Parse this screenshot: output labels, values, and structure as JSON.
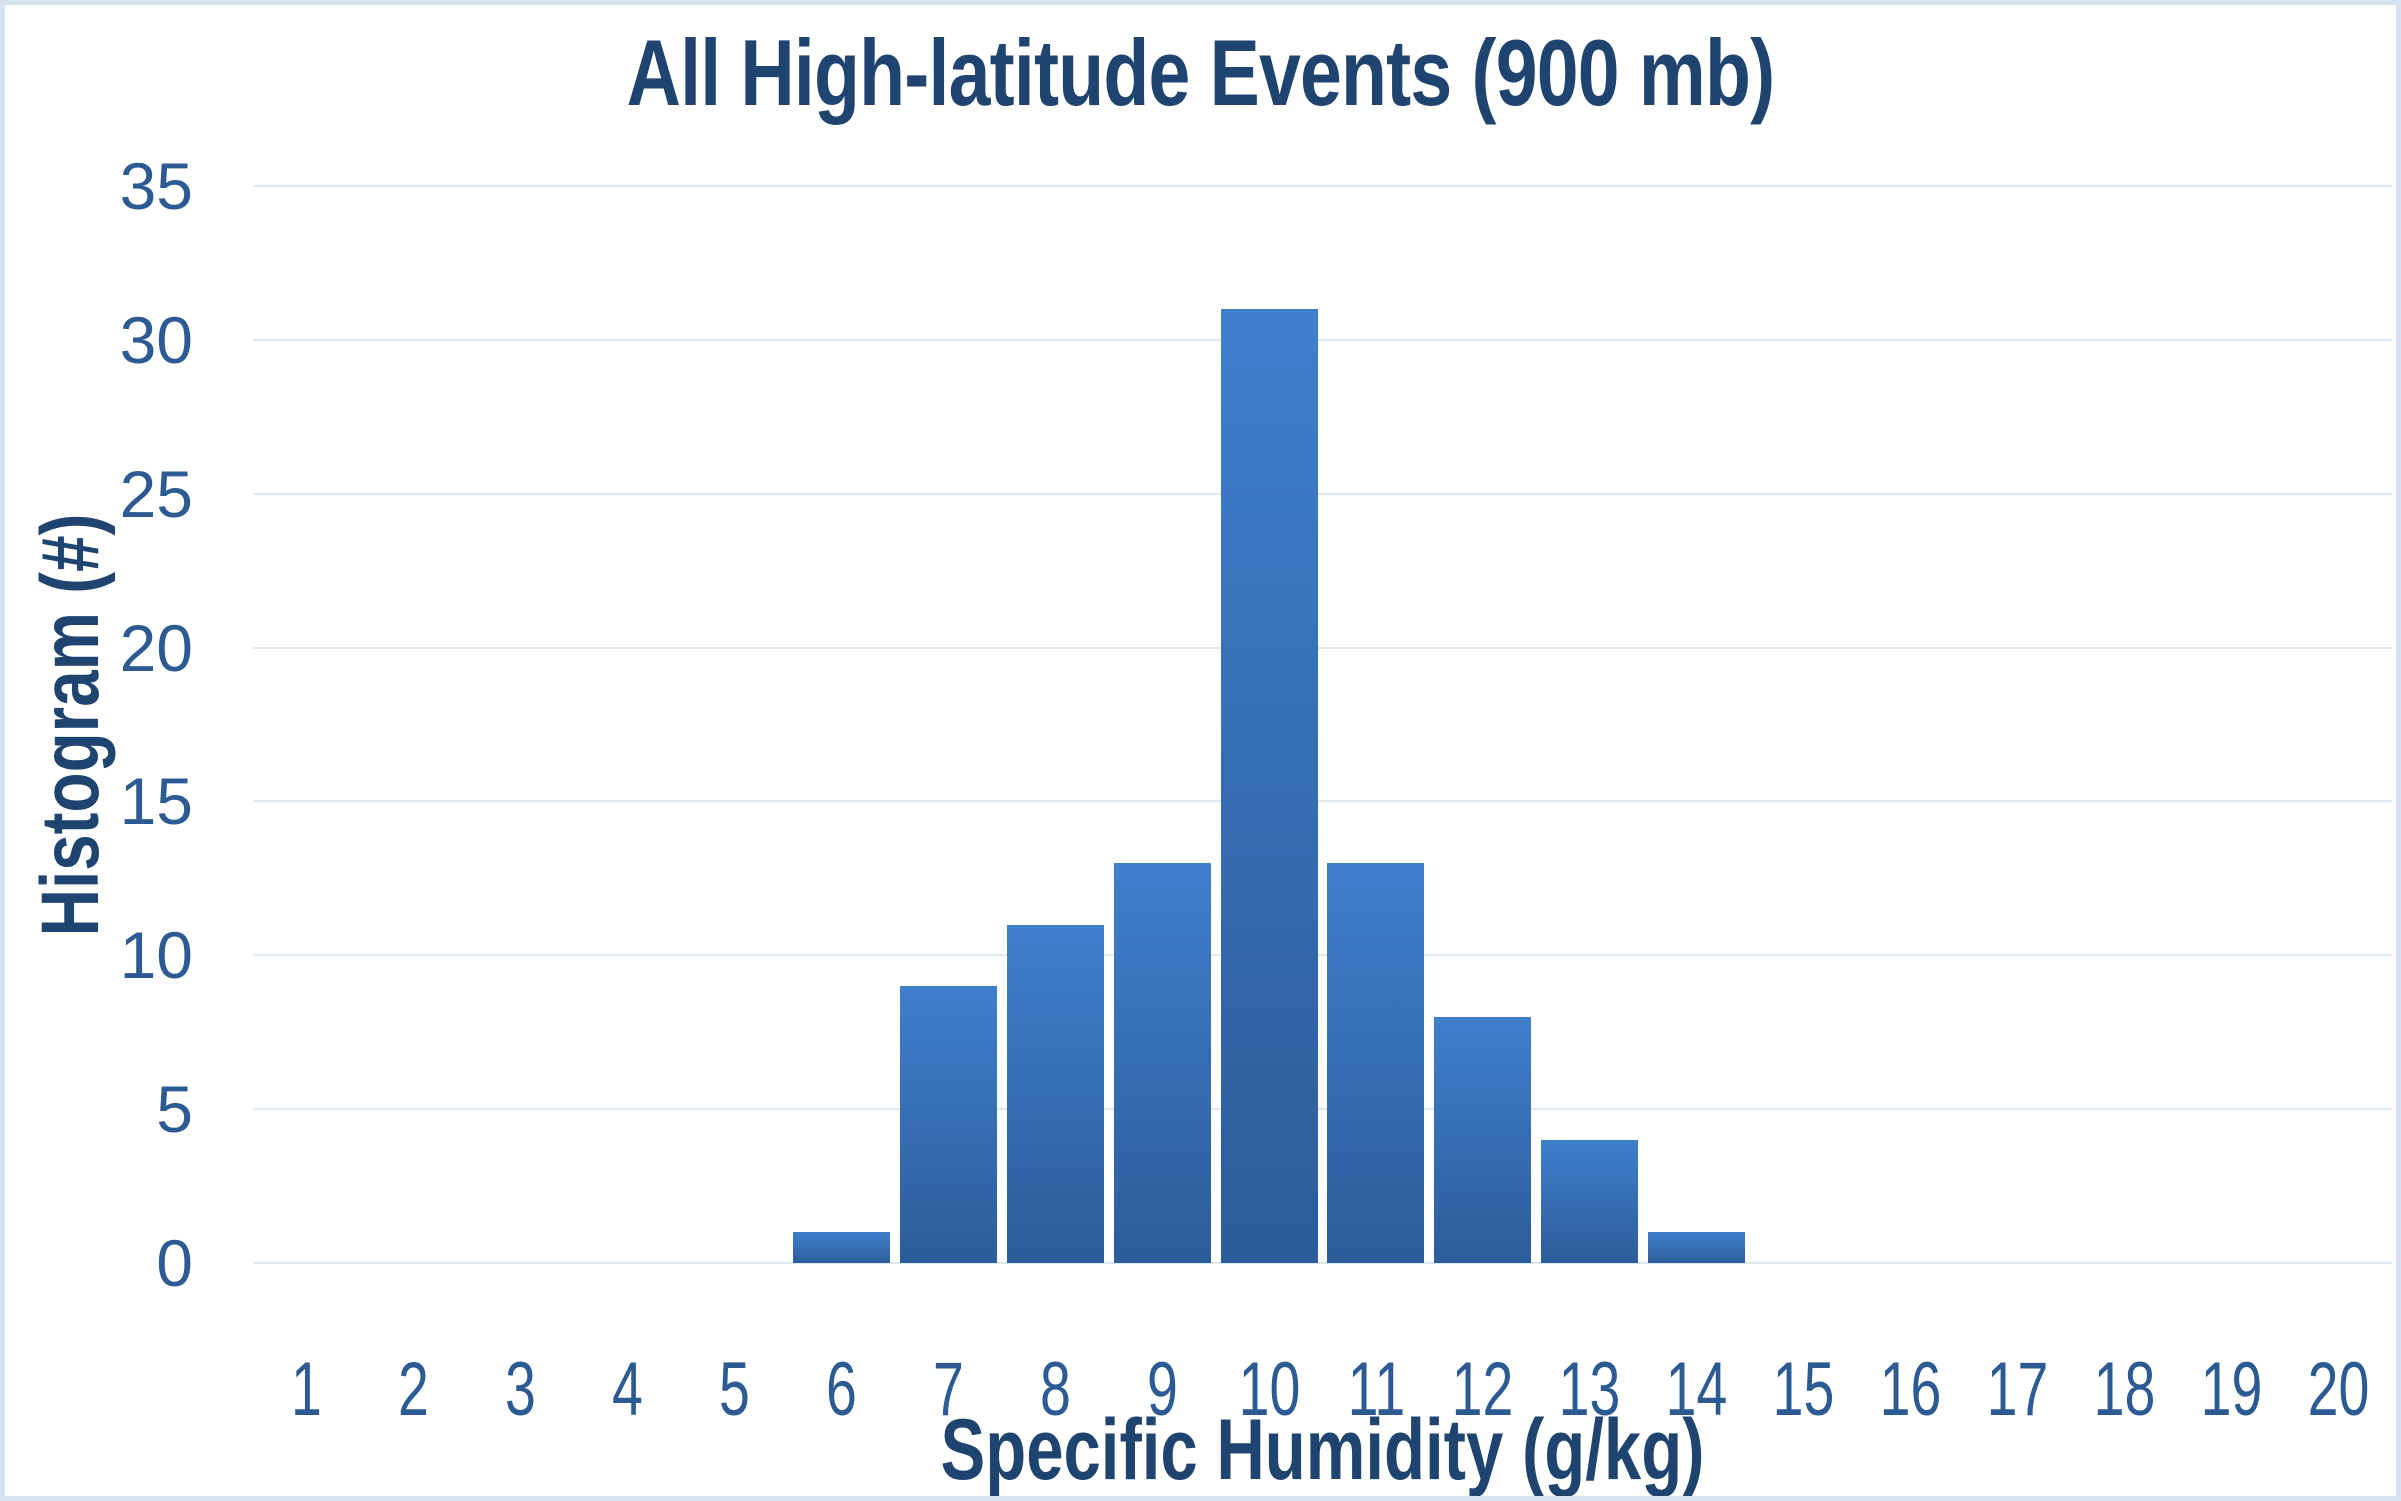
{
  "chart_data": {
    "type": "bar",
    "title": "All High-latitude Events (900 mb)",
    "xlabel": "Specific Humidity (g/kg)",
    "ylabel": "Histogram (#)",
    "categories": [
      1,
      2,
      3,
      4,
      5,
      6,
      7,
      8,
      9,
      10,
      11,
      12,
      13,
      14,
      15,
      16,
      17,
      18,
      19,
      20
    ],
    "values": [
      0,
      0,
      0,
      0,
      0,
      1,
      9,
      11,
      13,
      31,
      13,
      8,
      4,
      1,
      0,
      0,
      0,
      0,
      0,
      0
    ],
    "ylim": [
      0,
      35
    ],
    "ytick_step": 5,
    "yticks": [
      0,
      5,
      10,
      15,
      20,
      25,
      30,
      35
    ],
    "grid": true,
    "legend": false,
    "colors": {
      "bar_top": "#3f7fcc",
      "bar_bottom": "#2d5c9a",
      "gridline": "#dce9f3",
      "tick_label": "#2c5a92",
      "title_text": "#1f4470",
      "frame_border": "#d6e2f0",
      "background": "#ffffff"
    }
  }
}
